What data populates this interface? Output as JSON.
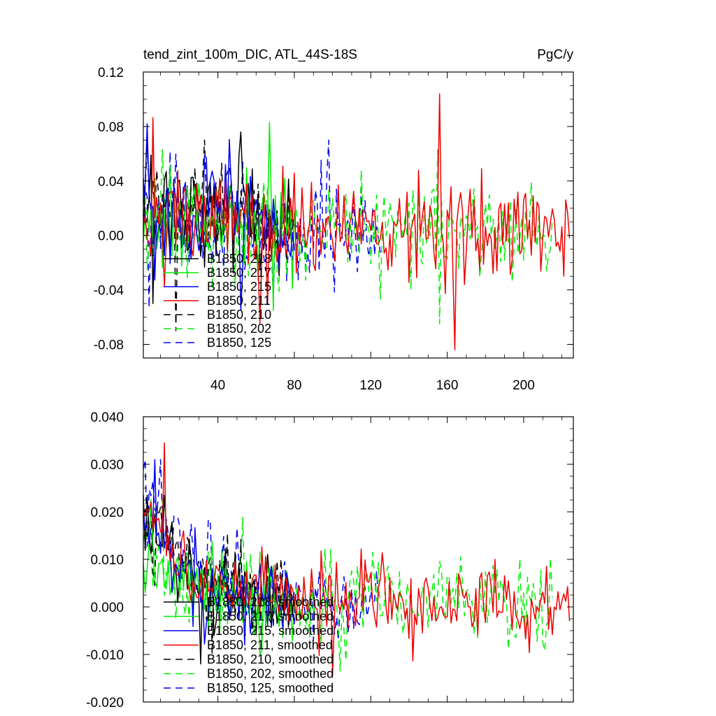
{
  "charts": {
    "top": {
      "type": "line",
      "title_left": "tend_zint_100m_DIC, ATL_44S-18S",
      "title_right": "PgC/y",
      "xlim": [
        1,
        226
      ],
      "ylim": [
        -0.09,
        0.12
      ],
      "yticks": [
        {
          "v": 0.12,
          "label": "0.12"
        },
        {
          "v": 0.08,
          "label": "0.08"
        },
        {
          "v": 0.04,
          "label": "0.04"
        },
        {
          "v": 0.0,
          "label": "0.00"
        },
        {
          "v": -0.04,
          "label": "-0.04"
        },
        {
          "v": -0.08,
          "label": "-0.08"
        }
      ],
      "xticks": [
        {
          "v": 40,
          "label": "40"
        },
        {
          "v": 80,
          "label": "80"
        },
        {
          "v": 120,
          "label": "120"
        },
        {
          "v": 160,
          "label": "160"
        },
        {
          "v": 200,
          "label": "200"
        }
      ],
      "series": [
        {
          "name": "B1850, 218",
          "color": "#000000",
          "dash": false
        },
        {
          "name": "B1850, 217",
          "color": "#00ee00",
          "dash": false
        },
        {
          "name": "B1850, 215",
          "color": "#0000ee",
          "dash": false
        },
        {
          "name": "B1850, 211",
          "color": "#ee0000",
          "dash": false
        },
        {
          "name": "B1850, 210",
          "color": "#000000",
          "dash": true
        },
        {
          "name": "B1850, 202",
          "color": "#00ee00",
          "dash": true
        },
        {
          "name": "B1850, 125",
          "color": "#0000ee",
          "dash": true
        }
      ]
    },
    "bottom": {
      "type": "line",
      "xlim": [
        1,
        226
      ],
      "ylim": [
        -0.02,
        0.04
      ],
      "yticks": [
        {
          "v": 0.04,
          "label": "0.040"
        },
        {
          "v": 0.03,
          "label": "0.030"
        },
        {
          "v": 0.02,
          "label": "0.020"
        },
        {
          "v": 0.01,
          "label": "0.010"
        },
        {
          "v": 0.0,
          "label": "0.000"
        },
        {
          "v": -0.01,
          "label": "-0.010"
        },
        {
          "v": -0.02,
          "label": "-0.020"
        }
      ],
      "series": [
        {
          "name": "B1850, 218, smoothed",
          "color": "#000000",
          "dash": false
        },
        {
          "name": "B1850, 217, smoothed",
          "color": "#00ee00",
          "dash": false
        },
        {
          "name": "B1850, 215, smoothed",
          "color": "#0000ee",
          "dash": false
        },
        {
          "name": "B1850, 211, smoothed",
          "color": "#ee0000",
          "dash": false
        },
        {
          "name": "B1850, 210, smoothed",
          "color": "#000000",
          "dash": true
        },
        {
          "name": "B1850, 202, smoothed",
          "color": "#00ee00",
          "dash": true
        },
        {
          "name": "B1850, 125, smoothed",
          "color": "#0000ee",
          "dash": true
        }
      ]
    }
  },
  "chart_data": [
    {
      "type": "line",
      "title": "tend_zint_100m_DIC, ATL_44S-18S",
      "units": "PgC/y",
      "xlim": [
        1,
        226
      ],
      "ylim": [
        -0.09,
        0.12
      ],
      "series": [
        {
          "name": "B1850, 218",
          "x_range": [
            1,
            80
          ],
          "mean": 0.012,
          "amplitude": 0.025,
          "max": 0.076,
          "min": -0.05
        },
        {
          "name": "B1850, 217",
          "x_range": [
            1,
            80
          ],
          "mean": 0.008,
          "amplitude": 0.025,
          "max": 0.083,
          "min": -0.055
        },
        {
          "name": "B1850, 215",
          "x_range": [
            1,
            80
          ],
          "mean": 0.01,
          "amplitude": 0.026,
          "max": 0.082,
          "min": -0.055
        },
        {
          "name": "B1850, 211",
          "x_range": [
            1,
            224
          ],
          "mean": 0.005,
          "amplitude": 0.025,
          "max": 0.104,
          "min": -0.084
        },
        {
          "name": "B1850, 210",
          "x_range": [
            1,
            80
          ],
          "mean": 0.012,
          "amplitude": 0.025,
          "max": 0.07,
          "min": -0.07
        },
        {
          "name": "B1850, 202",
          "x_range": [
            1,
            215
          ],
          "mean": 0.004,
          "amplitude": 0.024,
          "max": 0.063,
          "min": -0.065
        },
        {
          "name": "B1850, 125",
          "x_range": [
            1,
            125
          ],
          "mean": 0.006,
          "amplitude": 0.024,
          "max": 0.07,
          "min": -0.053
        }
      ]
    },
    {
      "type": "line",
      "ylim": [
        -0.02,
        0.04
      ],
      "xlim": [
        1,
        226
      ],
      "series": [
        {
          "name": "B1850, 218, smoothed",
          "x_range": [
            1,
            80
          ],
          "start": 0.02,
          "end": 0.003,
          "max": 0.0235,
          "min": -0.012
        },
        {
          "name": "B1850, 217, smoothed",
          "x_range": [
            1,
            80
          ],
          "start": 0.012,
          "end": 0.002,
          "max": 0.0225,
          "min": -0.01
        },
        {
          "name": "B1850, 215, smoothed",
          "x_range": [
            1,
            80
          ],
          "start": 0.018,
          "end": 0.003,
          "max": 0.031,
          "min": -0.008
        },
        {
          "name": "B1850, 211, smoothed",
          "x_range": [
            1,
            224
          ],
          "start": 0.02,
          "end": -0.003,
          "max": 0.0345,
          "min": -0.0145
        },
        {
          "name": "B1850, 210, smoothed",
          "x_range": [
            1,
            80
          ],
          "start": 0.02,
          "end": 0.003,
          "max": 0.021,
          "min": -0.01
        },
        {
          "name": "B1850, 202, smoothed",
          "x_range": [
            1,
            215
          ],
          "start": 0.012,
          "end": 0.002,
          "max": 0.0225,
          "min": -0.0135
        },
        {
          "name": "B1850, 125, smoothed",
          "x_range": [
            1,
            125
          ],
          "start": 0.03,
          "end": 0.002,
          "max": 0.031,
          "min": -0.007
        }
      ]
    }
  ]
}
